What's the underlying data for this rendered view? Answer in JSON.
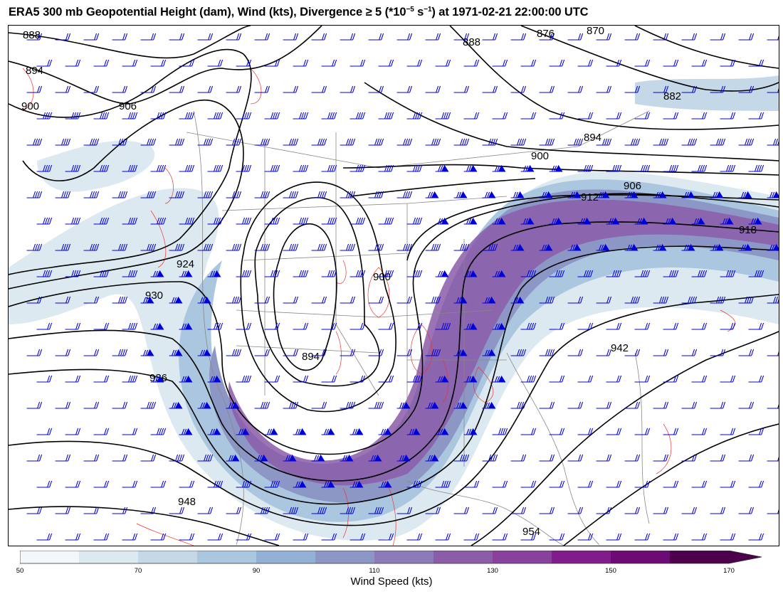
{
  "title": {
    "prefix": "ERA5 300 mb Geopotential Height (dam), Wind (kts), Divergence ≥ 5 (*10",
    "exp1": "−5",
    "mid": " s",
    "exp2": "−1",
    "suffix": ") at 1971-02-21 22:00:00 UTC"
  },
  "colorbar": {
    "label": "Wind Speed (kts)",
    "ticks": [
      "50",
      "70",
      "90",
      "110",
      "130",
      "150",
      "170"
    ],
    "colors": [
      "#f2f7fa",
      "#dce9f1",
      "#c4d8e8",
      "#abc6df",
      "#93b1d4",
      "#8c97c6",
      "#8c7bb8",
      "#8b5ca8",
      "#88419d",
      "#7f1e8a",
      "#6d0b74",
      "#4d004b"
    ]
  },
  "contour_labels": [
    "888",
    "894",
    "900",
    "906",
    "876",
    "870",
    "888",
    "882",
    "894",
    "900",
    "906",
    "912",
    "918",
    "924",
    "930",
    "900",
    "894",
    "936",
    "942",
    "948",
    "954"
  ],
  "colors": {
    "height_contour": "#000000",
    "wind_barb": "#0000dd",
    "divergence": "#ee3333",
    "borders": "#888888"
  }
}
